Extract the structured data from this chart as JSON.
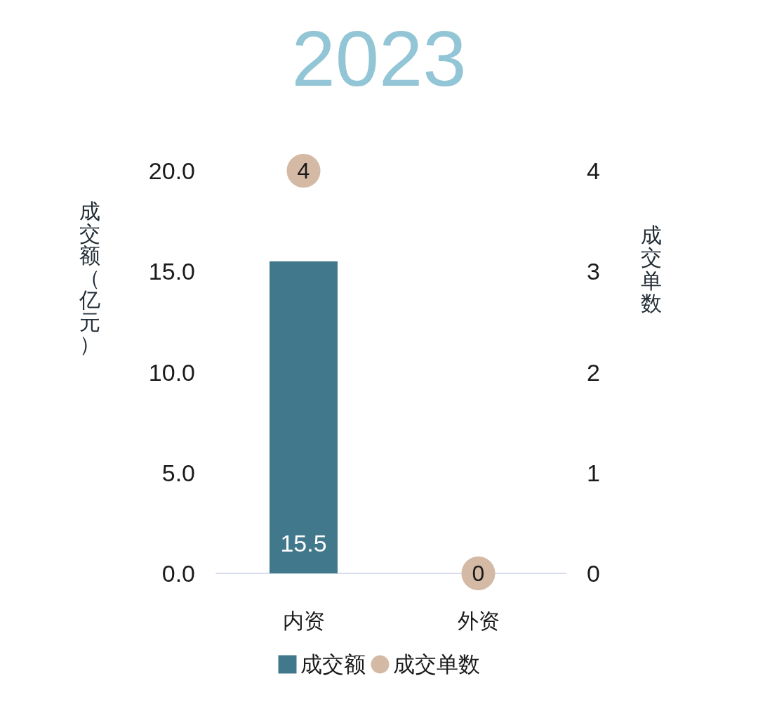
{
  "chart_data": {
    "type": "bar",
    "title": "2023",
    "ylabel": "成交额（亿元）",
    "y2label": "成交单数",
    "categories": [
      "内资",
      "外资"
    ],
    "series": [
      {
        "name": "成交额",
        "color": "#41788c",
        "values": [
          15.5,
          0
        ],
        "value_labels": [
          "15.5",
          null
        ]
      },
      {
        "name": "成交单数",
        "type": "scatter",
        "axis": "y2",
        "color": "#d4b9a5",
        "values": [
          4,
          0
        ],
        "value_labels": [
          "4",
          "0"
        ]
      }
    ],
    "ylim": [
      0,
      20
    ],
    "yticks": [
      {
        "value": 0,
        "label": "0.0"
      },
      {
        "value": 5,
        "label": "5.0"
      },
      {
        "value": 10,
        "label": "10.0"
      },
      {
        "value": 15,
        "label": "15.0"
      },
      {
        "value": 20,
        "label": "20.0"
      }
    ],
    "y2lim": [
      0,
      4
    ],
    "y2ticks": [
      0,
      1,
      2,
      3,
      4
    ],
    "legend": "bottom",
    "grid": false,
    "marker": "circle"
  }
}
